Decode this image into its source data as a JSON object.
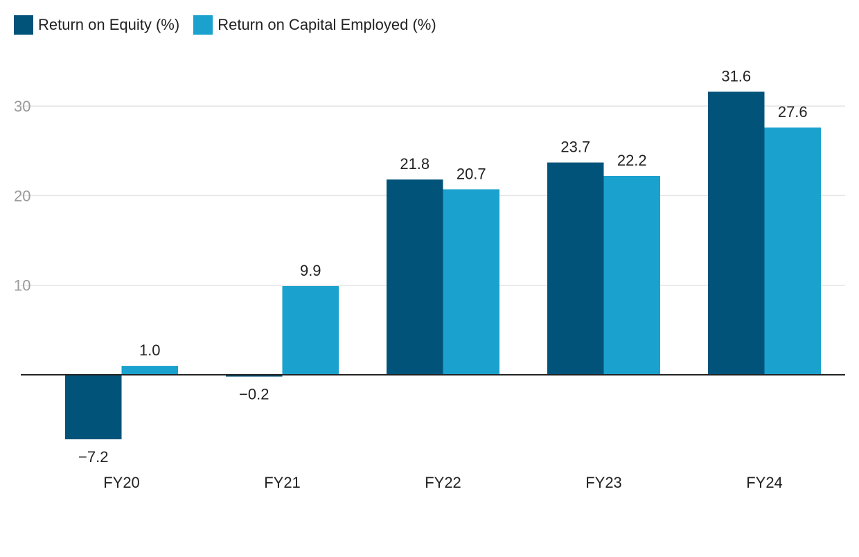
{
  "chart_data": {
    "type": "bar",
    "categories": [
      "FY20",
      "FY21",
      "FY22",
      "FY23",
      "FY24"
    ],
    "series": [
      {
        "name": "Return on Equity (%)",
        "color": "#02537a",
        "values": [
          -7.2,
          -0.2,
          21.8,
          23.7,
          31.6
        ],
        "labels": [
          "−7.2",
          "−0.2",
          "21.8",
          "23.7",
          "31.6"
        ]
      },
      {
        "name": "Return on Capital Employed (%)",
        "color": "#1aa1ce",
        "values": [
          1.0,
          9.9,
          20.7,
          22.2,
          27.6
        ],
        "labels": [
          "1.0",
          "9.9",
          "20.7",
          "22.2",
          "27.6"
        ]
      }
    ],
    "yticks": [
      "10",
      "20",
      "30"
    ],
    "ylim": [
      -10,
      35
    ],
    "grid": true,
    "legend_position": "top-left",
    "title": "",
    "xlabel": "",
    "ylabel": ""
  }
}
